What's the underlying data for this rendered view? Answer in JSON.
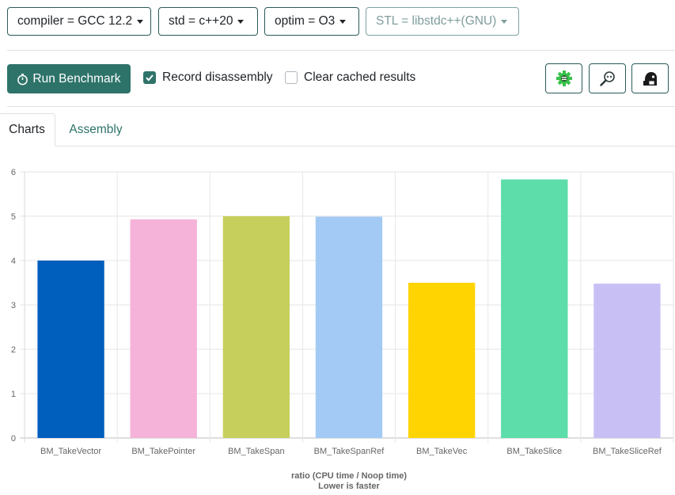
{
  "toolbar": {
    "compiler": "compiler = GCC 12.2",
    "std": "std = c++20",
    "optim": "optim = O3",
    "stl": "STL = libstdc++(GNU)"
  },
  "actions": {
    "run_label": "Run Benchmark",
    "record_label": "Record disassembly",
    "record_checked": true,
    "clear_label": "Clear cached results",
    "clear_checked": false
  },
  "tabs": {
    "charts": "Charts",
    "assembly": "Assembly"
  },
  "colors": {
    "accent": "#2e7369"
  },
  "icons": [
    "gear-icon",
    "magnifier-icon",
    "benchmark-mascot-icon"
  ],
  "chart_data": {
    "type": "bar",
    "categories": [
      "BM_TakeVector",
      "BM_TakePointer",
      "BM_TakeSpan",
      "BM_TakeSpanRef",
      "BM_TakeVec",
      "BM_TakeSlice",
      "BM_TakeSliceRef"
    ],
    "values": [
      4.0,
      4.93,
      5.0,
      4.99,
      3.5,
      5.83,
      3.48
    ],
    "colors": [
      "#005ebd",
      "#f5b3d9",
      "#c6cf5c",
      "#a2caf5",
      "#ffd400",
      "#5cddaa",
      "#c8c0f5"
    ],
    "xlabel": [
      "ratio (CPU time / Noop time)",
      "Lower is faster"
    ],
    "ylim": [
      0,
      6
    ],
    "yticks": [
      0,
      1,
      2,
      3,
      4,
      5,
      6
    ],
    "grid": true
  }
}
